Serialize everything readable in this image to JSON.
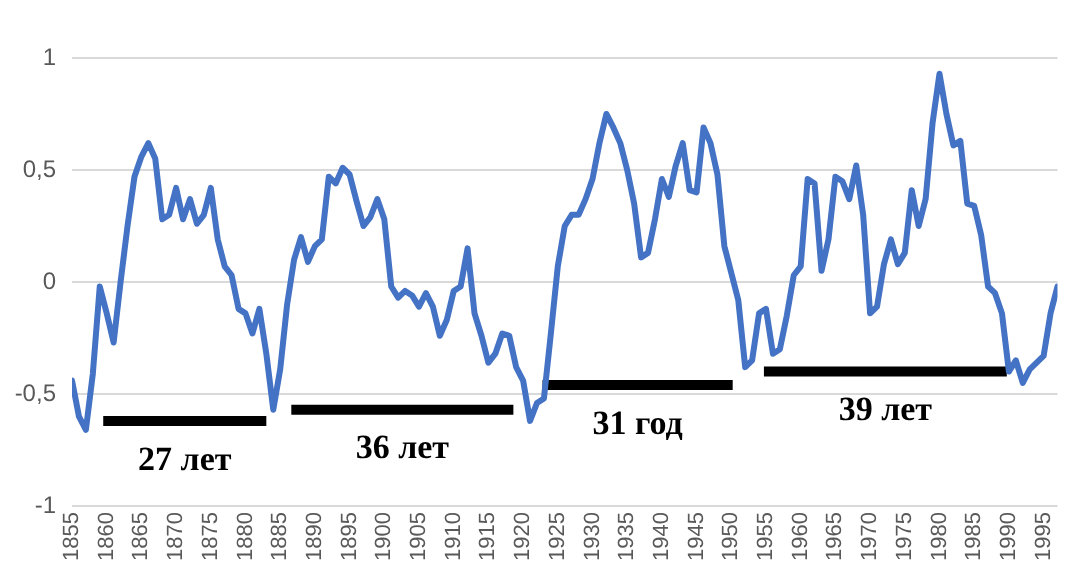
{
  "chart_data": {
    "type": "line",
    "xlim": [
      1855,
      1997
    ],
    "xticks": [
      1855,
      1860,
      1865,
      1870,
      1875,
      1880,
      1885,
      1890,
      1895,
      1900,
      1905,
      1910,
      1915,
      1920,
      1925,
      1930,
      1935,
      1940,
      1945,
      1950,
      1955,
      1960,
      1965,
      1970,
      1975,
      1980,
      1985,
      1990,
      1995
    ],
    "ylim": [
      -1,
      1
    ],
    "yticks": [
      {
        "value": -1,
        "label": "-1"
      },
      {
        "value": -0.5,
        "label": "-0,5"
      },
      {
        "value": 0,
        "label": "0"
      },
      {
        "value": 0.5,
        "label": "0,5"
      },
      {
        "value": 1,
        "label": "1"
      }
    ],
    "grid": "y",
    "legend": false,
    "marker": "none",
    "line_style": "solid",
    "x": [
      1855,
      1856,
      1857,
      1858,
      1859,
      1860,
      1861,
      1862,
      1863,
      1864,
      1865,
      1866,
      1867,
      1868,
      1869,
      1870,
      1871,
      1872,
      1873,
      1874,
      1875,
      1876,
      1877,
      1878,
      1879,
      1880,
      1881,
      1882,
      1883,
      1884,
      1885,
      1886,
      1887,
      1888,
      1889,
      1890,
      1891,
      1892,
      1893,
      1894,
      1895,
      1896,
      1897,
      1898,
      1899,
      1900,
      1901,
      1902,
      1903,
      1904,
      1905,
      1906,
      1907,
      1908,
      1909,
      1910,
      1911,
      1912,
      1913,
      1914,
      1915,
      1916,
      1917,
      1918,
      1919,
      1920,
      1921,
      1922,
      1923,
      1924,
      1925,
      1926,
      1927,
      1928,
      1929,
      1930,
      1931,
      1932,
      1933,
      1934,
      1935,
      1936,
      1937,
      1938,
      1939,
      1940,
      1941,
      1942,
      1943,
      1944,
      1945,
      1946,
      1947,
      1948,
      1949,
      1950,
      1951,
      1952,
      1953,
      1954,
      1955,
      1956,
      1957,
      1958,
      1959,
      1960,
      1961,
      1962,
      1963,
      1964,
      1965,
      1966,
      1967,
      1968,
      1969,
      1970,
      1971,
      1972,
      1973,
      1974,
      1975,
      1976,
      1977,
      1978,
      1979,
      1980,
      1981,
      1982,
      1983,
      1984,
      1985,
      1986,
      1987,
      1988,
      1989,
      1990,
      1991,
      1992,
      1993,
      1994,
      1995,
      1996,
      1997
    ],
    "series": [
      {
        "color": "#4472c4",
        "values": [
          -0.44,
          -0.6,
          -0.66,
          -0.41,
          -0.02,
          -0.14,
          -0.27,
          0.0,
          0.25,
          0.47,
          0.56,
          0.62,
          0.55,
          0.28,
          0.3,
          0.42,
          0.28,
          0.37,
          0.26,
          0.3,
          0.42,
          0.19,
          0.07,
          0.03,
          -0.12,
          -0.14,
          -0.23,
          -0.12,
          -0.32,
          -0.57,
          -0.39,
          -0.1,
          0.1,
          0.2,
          0.09,
          0.16,
          0.19,
          0.47,
          0.44,
          0.51,
          0.48,
          0.36,
          0.25,
          0.29,
          0.37,
          0.28,
          -0.02,
          -0.07,
          -0.04,
          -0.06,
          -0.11,
          -0.05,
          -0.11,
          -0.24,
          -0.17,
          -0.04,
          -0.02,
          0.15,
          -0.14,
          -0.24,
          -0.36,
          -0.32,
          -0.23,
          -0.24,
          -0.38,
          -0.44,
          -0.62,
          -0.54,
          -0.52,
          -0.23,
          0.07,
          0.25,
          0.3,
          0.3,
          0.37,
          0.46,
          0.62,
          0.75,
          0.69,
          0.62,
          0.5,
          0.35,
          0.11,
          0.13,
          0.28,
          0.46,
          0.38,
          0.52,
          0.62,
          0.41,
          0.4,
          0.69,
          0.62,
          0.48,
          0.16,
          0.04,
          -0.08,
          -0.38,
          -0.35,
          -0.14,
          -0.12,
          -0.32,
          -0.3,
          -0.15,
          0.03,
          0.07,
          0.46,
          0.44,
          0.05,
          0.19,
          0.47,
          0.45,
          0.37,
          0.52,
          0.3,
          -0.14,
          -0.11,
          0.08,
          0.19,
          0.08,
          0.13,
          0.41,
          0.25,
          0.37,
          0.71,
          0.93,
          0.75,
          0.61,
          0.63,
          0.35,
          0.34,
          0.21,
          -0.02,
          -0.05,
          -0.14,
          -0.4,
          -0.35,
          -0.45,
          -0.39,
          -0.36,
          -0.33,
          -0.14,
          -0.02
        ]
      },
      {
        "type": "line",
        "color": "#000000",
        "x": [
          1859.5,
          1883
        ],
        "values": [
          -0.62,
          -0.62
        ]
      },
      {
        "type": "line",
        "color": "#000000",
        "x": [
          1886.6,
          1918.6
        ],
        "values": [
          -0.57,
          -0.57
        ]
      },
      {
        "type": "line",
        "color": "#000000",
        "x": [
          1922.8,
          1950.2
        ],
        "values": [
          -0.46,
          -0.46
        ]
      },
      {
        "type": "line",
        "color": "#000000",
        "x": [
          1954.7,
          1989.7
        ],
        "values": [
          -0.4,
          -0.4
        ]
      }
    ],
    "annotations": [
      "27 лет",
      "36 лет",
      "31 год",
      "39 лет"
    ]
  }
}
